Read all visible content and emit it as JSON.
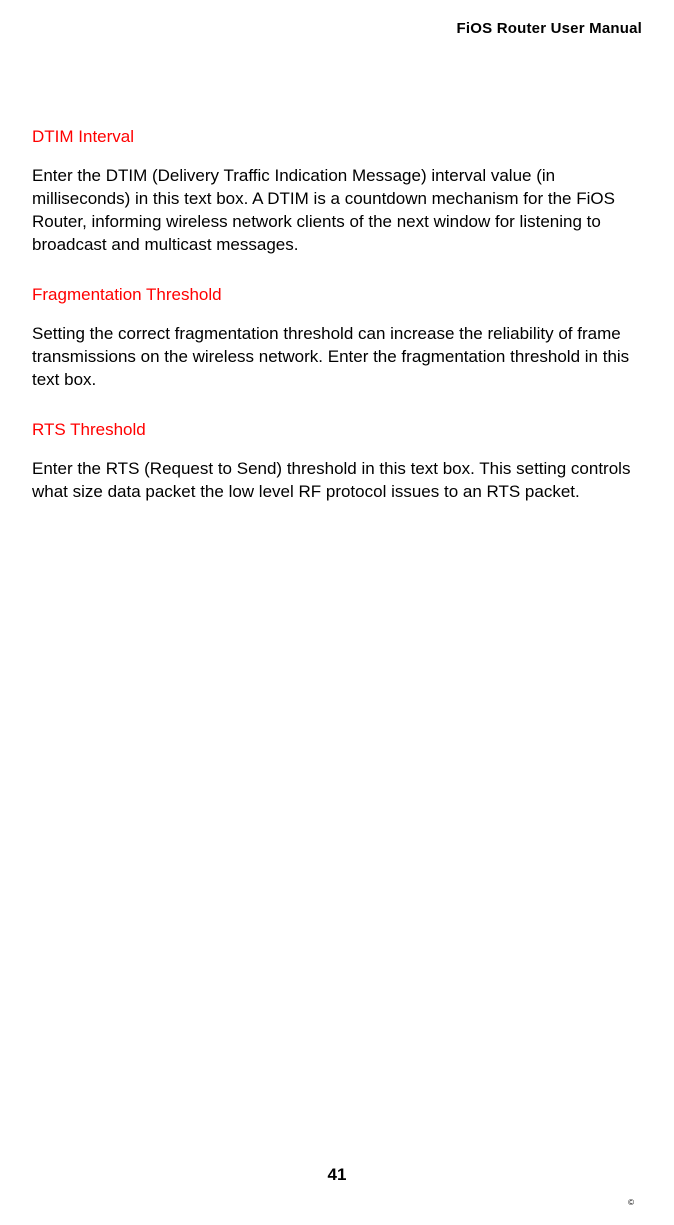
{
  "header": {
    "title": "FiOS Router User Manual"
  },
  "sections": {
    "dtim": {
      "heading": "DTIM Interval",
      "body": "Enter the DTIM (Delivery Traffic Indication Message) interval value (in milliseconds) in this text box. A DTIM is a countdown mechanism for the FiOS Router, informing wireless network clients of the next window for listening to broadcast and multicast messages."
    },
    "frag": {
      "heading": "Fragmentation Threshold",
      "body": "Setting the correct fragmentation threshold can increase the reliability of frame transmissions on the wireless network. Enter the fragmentation threshold in this text box."
    },
    "rts": {
      "heading": "RTS Threshold",
      "body": "Enter the RTS (Request to Send) threshold in this text box. This setting controls what size data packet the low level RF protocol issues to an RTS packet."
    }
  },
  "footer": {
    "page_number": "41",
    "copyright": "©"
  }
}
